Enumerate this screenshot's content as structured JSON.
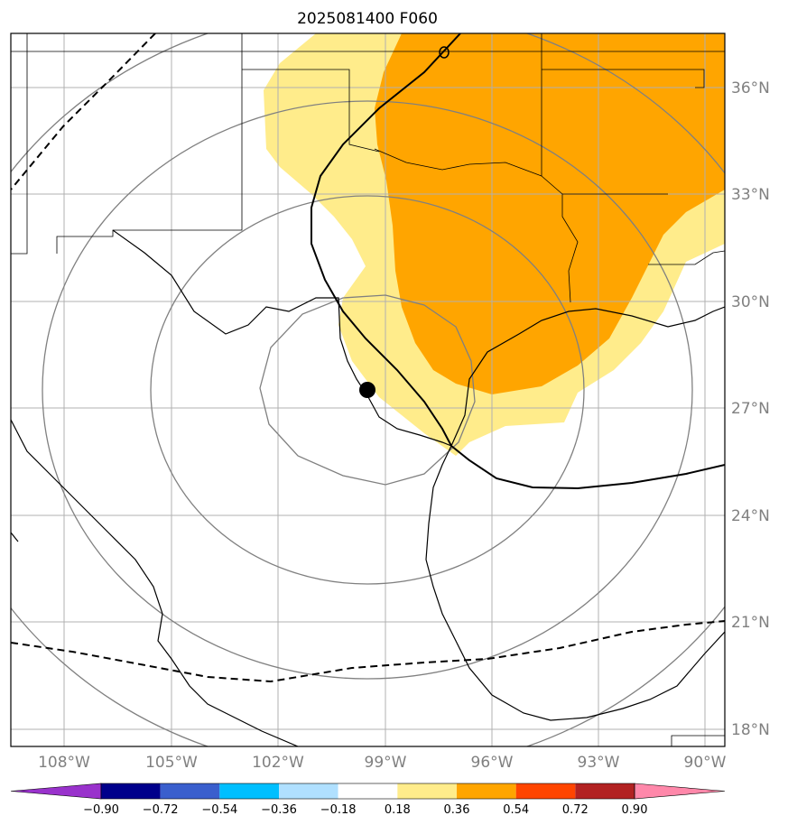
{
  "title": "2025081400 F060",
  "lat_labels": [
    "36°N",
    "33°N",
    "30°N",
    "27°N",
    "24°N",
    "21°N",
    "18°N"
  ],
  "lon_labels": [
    "108°W",
    "105°W",
    "102°W",
    "99°W",
    "96°W",
    "93°W",
    "90°W"
  ],
  "colorbar": {
    "tick_labels": [
      "−0.90",
      "−0.72",
      "−0.54",
      "−0.36",
      "−0.18",
      "0.18",
      "0.36",
      "0.54",
      "0.72",
      "0.90"
    ],
    "colors": [
      "#9932cc",
      "#00008b",
      "#3a5fcd",
      "#00bfff",
      "#b0e0ff",
      "#ffffff",
      "#ffec8b",
      "#ffa500",
      "#ff4500",
      "#b22222",
      "#ff88aa"
    ]
  },
  "map": {
    "center_marker": "storm-center",
    "shading_colors": {
      "light": "#ffec8b",
      "dark": "#ffa500"
    },
    "line_colors": {
      "coast": "#000000",
      "grid": "#b0b0b0",
      "rings": "#808080"
    }
  }
}
